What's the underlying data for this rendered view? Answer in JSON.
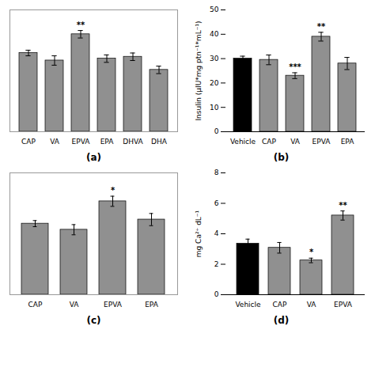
{
  "chart_data": [
    {
      "type": "bar",
      "title": "(a)",
      "categories": [
        "CAP",
        "VA",
        "EPVA",
        "EPA",
        "DHVA",
        "DHA"
      ],
      "values": [
        4.2,
        3.8,
        5.2,
        3.9,
        4.0,
        3.3
      ],
      "errors": [
        0.15,
        0.25,
        0.2,
        0.2,
        0.2,
        0.2
      ],
      "colors": [
        "#909090",
        "#909090",
        "#909090",
        "#909090",
        "#909090",
        "#909090"
      ],
      "annotations": [
        null,
        null,
        "**",
        null,
        null,
        null
      ],
      "ylim": [
        0,
        6.5
      ],
      "tick_labels": "x"
    },
    {
      "type": "bar",
      "title": "(b)",
      "categories": [
        "Vehicle",
        "CAP",
        "VA",
        "EPVA",
        "EPA"
      ],
      "values": [
        30,
        29.5,
        23,
        39,
        28
      ],
      "errors": [
        1.0,
        2.0,
        1.2,
        1.8,
        2.5
      ],
      "colors": [
        "#000000",
        "#909090",
        "#909090",
        "#909090",
        "#909090"
      ],
      "annotations": [
        null,
        null,
        "***",
        "**",
        null
      ],
      "ylabel": "Insulin (μIU*mg ptn⁻¹*mL⁻¹)",
      "ylim": [
        0,
        50
      ],
      "yticks": [
        0,
        10,
        20,
        30,
        40,
        50
      ]
    },
    {
      "type": "bar",
      "title": "(c)",
      "categories": [
        "CAP",
        "VA",
        "EPVA",
        "EPA"
      ],
      "values": [
        3.5,
        3.2,
        4.6,
        3.7
      ],
      "errors": [
        0.15,
        0.25,
        0.25,
        0.3
      ],
      "colors": [
        "#909090",
        "#909090",
        "#909090",
        "#909090"
      ],
      "annotations": [
        null,
        null,
        "*",
        null
      ],
      "ylim": [
        0,
        6.0
      ],
      "tick_labels": "x"
    },
    {
      "type": "bar",
      "title": "(d)",
      "categories": [
        "Vehicle",
        "CAP",
        "VA",
        "EPVA"
      ],
      "values": [
        3.35,
        3.08,
        2.25,
        5.2
      ],
      "errors": [
        0.3,
        0.35,
        0.15,
        0.3
      ],
      "colors": [
        "#000000",
        "#909090",
        "#909090",
        "#909090"
      ],
      "annotations": [
        null,
        null,
        "*",
        "**"
      ],
      "ylabel": "mg Ca²⁺ dL⁻¹",
      "ylim": [
        0,
        8
      ],
      "yticks": [
        0,
        2,
        4,
        6,
        8
      ]
    }
  ]
}
